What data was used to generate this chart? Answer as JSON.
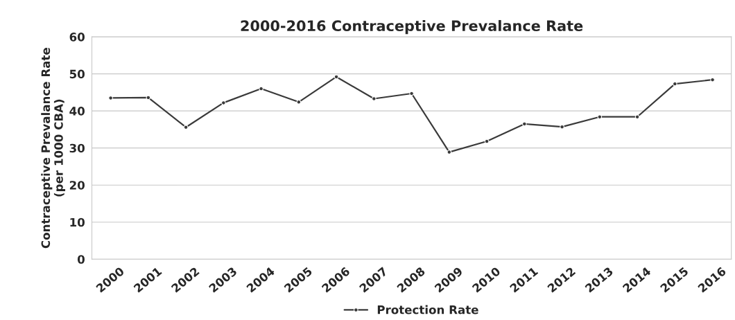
{
  "chart_data": {
    "type": "line",
    "title": "2000-2016 Contraceptive Prevalance Rate",
    "ylabel": "Contraceptive Prevalance Rate\n(per 1000 CBA)",
    "categories": [
      "2000",
      "2001",
      "2002",
      "2003",
      "2004",
      "2005",
      "2006",
      "2007",
      "2008",
      "2009",
      "2010",
      "2011",
      "2012",
      "2013",
      "2014",
      "2015",
      "2016"
    ],
    "series": [
      {
        "name": "Protection Rate",
        "color": "#3a3a3a",
        "values": [
          43.5,
          43.6,
          35.6,
          42.2,
          46.0,
          42.4,
          49.2,
          43.3,
          44.7,
          28.9,
          31.8,
          36.5,
          35.7,
          38.4,
          38.4,
          47.3,
          48.4
        ]
      }
    ],
    "ylim": [
      0,
      60
    ],
    "yticks": [
      0,
      10,
      20,
      30,
      40,
      50,
      60
    ],
    "grid": "y",
    "legend": "bottom",
    "marker": "circle",
    "line_style": "solid"
  }
}
